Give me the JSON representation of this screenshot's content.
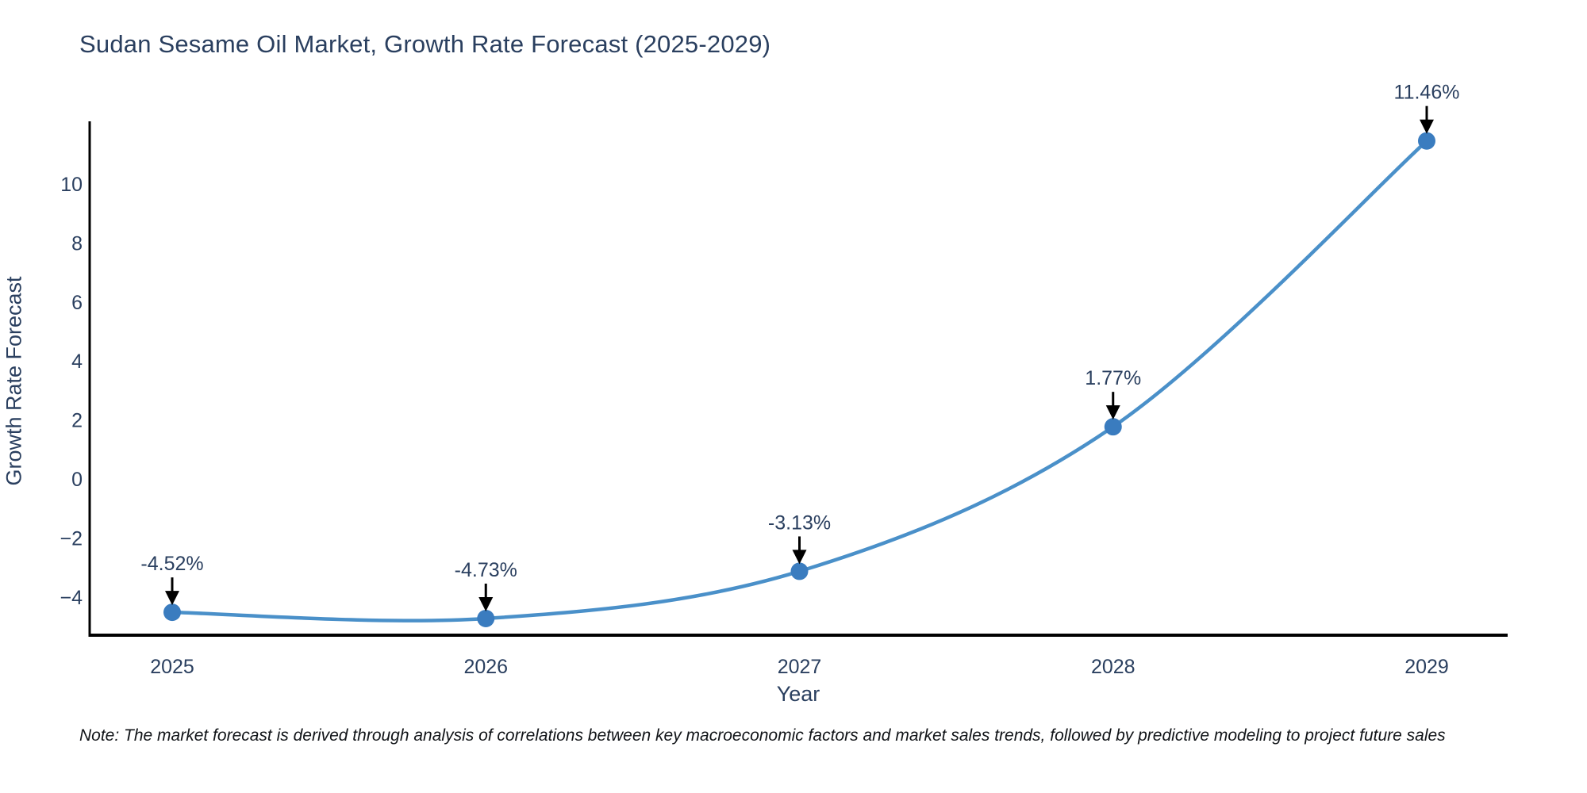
{
  "title": "Sudan Sesame Oil Market, Growth Rate Forecast (2025-2029)",
  "note": "Note: The market forecast is derived through analysis of correlations between key macroeconomic factors and market sales trends, followed by predictive modeling to project future sales",
  "chart_data": {
    "type": "line",
    "title": "Sudan Sesame Oil Market, Growth Rate Forecast (2025-2029)",
    "xlabel": "Year",
    "ylabel": "Growth Rate Forecast",
    "x": [
      2025,
      2026,
      2027,
      2028,
      2029
    ],
    "series": [
      {
        "name": "Growth Rate Forecast",
        "values": [
          -4.52,
          -4.73,
          -3.13,
          1.77,
          11.46
        ],
        "point_labels": [
          "-4.52%",
          "-4.73%",
          "-3.13%",
          "1.77%",
          "11.46%"
        ]
      }
    ],
    "x_tick_labels": [
      "2025",
      "2026",
      "2027",
      "2028",
      "2029"
    ],
    "y_ticks": [
      -4,
      -2,
      0,
      2,
      4,
      6,
      8,
      10
    ],
    "y_tick_labels": [
      "−4",
      "−2",
      "0",
      "2",
      "4",
      "6",
      "8",
      "10"
    ],
    "ylim": [
      -5.3,
      12.1
    ],
    "line_shape": "spline",
    "grid": false,
    "legend_position": "none",
    "colors": {
      "line": "#4a90c9",
      "marker": "#3a7cbf",
      "text": "#2a3f5f",
      "axis": "#000000",
      "arrow": "#000000",
      "background": "#ffffff"
    }
  }
}
